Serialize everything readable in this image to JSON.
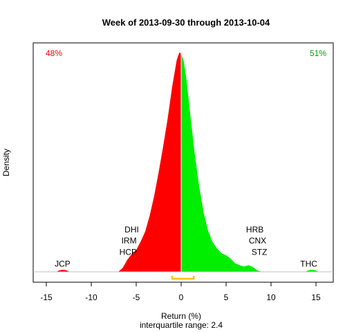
{
  "chart_data": {
    "type": "area",
    "title": "Week of 2013-09-30 through 2013-10-04",
    "xlabel": "Return (%)",
    "ylabel": "Density",
    "subtitle": "interquartile range: 2.4",
    "xlim": [
      -16,
      17
    ],
    "x_ticks": [
      -15,
      -10,
      -5,
      0,
      5,
      10,
      15
    ],
    "x_tick_labels": [
      "-15",
      "-10",
      "-5",
      "0",
      "5",
      "10",
      "15"
    ],
    "grid": false,
    "left_percent": "48%",
    "right_percent": "51%",
    "colors": {
      "negative": "#ff0000",
      "positive": "#00ee00",
      "iqr": "#ffc000",
      "baseline": "#c0c0c0",
      "divider": "#ffffff"
    },
    "density": {
      "x": [
        -13.9,
        -13.6,
        -13.3,
        -13.0,
        -12.7,
        -12.4,
        -7.0,
        -6.5,
        -6.0,
        -5.5,
        -5.0,
        -4.5,
        -4.0,
        -3.5,
        -3.0,
        -2.5,
        -2.0,
        -1.5,
        -1.0,
        -0.5,
        -0.2,
        0.0,
        0.0,
        0.3,
        0.6,
        1.0,
        1.5,
        2.0,
        2.5,
        3.0,
        3.5,
        4.0,
        4.5,
        5.0,
        5.5,
        6.0,
        6.5,
        7.0,
        7.5,
        8.0,
        8.5,
        9.0,
        9.5,
        13.8,
        14.1,
        14.4,
        14.7,
        15.0,
        15.3
      ],
      "y": [
        0.0,
        0.002,
        0.003,
        0.003,
        0.002,
        0.0,
        0.0,
        0.006,
        0.018,
        0.027,
        0.033,
        0.046,
        0.061,
        0.085,
        0.115,
        0.151,
        0.19,
        0.232,
        0.28,
        0.32,
        0.332,
        0.33,
        0.33,
        0.318,
        0.29,
        0.24,
        0.18,
        0.13,
        0.09,
        0.062,
        0.045,
        0.035,
        0.028,
        0.025,
        0.02,
        0.013,
        0.01,
        0.008,
        0.01,
        0.007,
        0.002,
        0.0,
        0.0,
        0.0,
        0.002,
        0.003,
        0.003,
        0.002,
        0.0
      ],
      "ymax": 0.336
    },
    "annotations": [
      {
        "text": "JCP",
        "x": -13.2,
        "y": 0.012
      },
      {
        "text": "DHI",
        "x": -5.5,
        "y": 0.064
      },
      {
        "text": "IRM",
        "x": -5.8,
        "y": 0.047
      },
      {
        "text": "HCP",
        "x": -5.9,
        "y": 0.03
      },
      {
        "text": "HRB",
        "x": 8.2,
        "y": 0.064
      },
      {
        "text": "CNX",
        "x": 8.5,
        "y": 0.047
      },
      {
        "text": "STZ",
        "x": 8.7,
        "y": 0.03
      },
      {
        "text": "THC",
        "x": 14.2,
        "y": 0.012
      }
    ],
    "iqr": [
      -1.0,
      1.4
    ]
  }
}
